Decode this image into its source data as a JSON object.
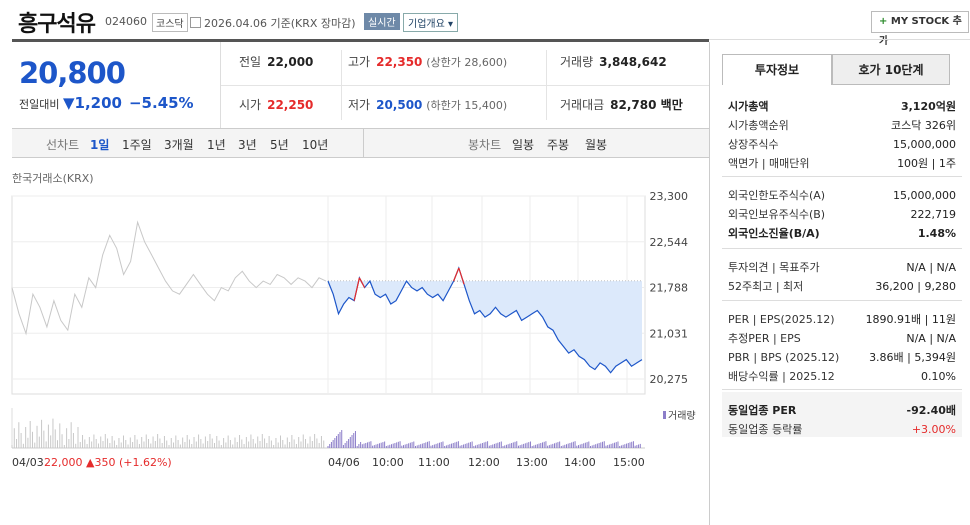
{
  "header": {
    "name": "흥구석유",
    "code": "024060",
    "market": "코스닥",
    "date": "2026.04.06 기준(KRX 장마감)",
    "realtime": "실시간",
    "company_info": "기업개요",
    "mystock_plus": "+",
    "mystock": "MY STOCK 추가"
  },
  "price": {
    "current": "20,800",
    "change_label": "전일대비",
    "change_arrow": "▼",
    "change": "1,200",
    "change_pct": "−5.45%"
  },
  "summary": {
    "prev_label": "전일",
    "prev": "22,000",
    "high_label": "고가",
    "high": "22,350",
    "upper": "(상한가 28,600)",
    "volume_label": "거래량",
    "volume": "3,848,642",
    "open_label": "시가",
    "open": "22,250",
    "low_label": "저가",
    "low": "20,500",
    "lower": "(하한가 15,400)",
    "amount_label": "거래대금",
    "amount": "82,780 백만"
  },
  "tabs": {
    "line_label": "선차트",
    "line": [
      "1일",
      "1주일",
      "3개월",
      "1년",
      "3년",
      "5년",
      "10년"
    ],
    "candle_label": "봉차트",
    "candle": [
      "일봉",
      "주봉",
      "월봉"
    ]
  },
  "chart_data": {
    "type": "line",
    "source": "한국거래소(KRX)",
    "yticks": [
      "23,300",
      "22,544",
      "21,788",
      "21,031",
      "20,275"
    ],
    "ylim": [
      20275,
      23300
    ],
    "prev_close": 22000,
    "xticks": [
      "04/06",
      "10:00",
      "11:00",
      "12:00",
      "13:00",
      "14:00",
      "15:00"
    ],
    "left_label_date": "04/03",
    "left_label_price": "22,000",
    "left_label_chg": "▲350 (+1.62%)",
    "volume_label": "거래량",
    "prev_day_series": [
      21900,
      21500,
      21200,
      21800,
      21600,
      21300,
      21700,
      21400,
      21250,
      21800,
      21600,
      22050,
      21900,
      22400,
      22700,
      22500,
      22100,
      22300,
      22900,
      22600,
      22400,
      22200,
      22000,
      21850,
      21800,
      21950,
      22100,
      21950,
      21800,
      21700,
      21900,
      21850,
      22050,
      22150,
      22000,
      21900,
      22000,
      21950,
      22100,
      22050,
      21950,
      22050,
      22000,
      21900,
      22050,
      22000
    ],
    "today_series": [
      22000,
      21800,
      21500,
      21650,
      21750,
      21700,
      22050,
      21900,
      22000,
      21800,
      21750,
      21800,
      21650,
      21700,
      21850,
      22000,
      21900,
      21850,
      21900,
      21800,
      21750,
      21800,
      21700,
      21850,
      22000,
      22200,
      21950,
      21700,
      21500,
      21550,
      21450,
      21500,
      21600,
      21500,
      21450,
      21500,
      21550,
      21400,
      21450,
      21500,
      21550,
      21450,
      21300,
      21250,
      21100,
      21000,
      20900,
      20950,
      20850,
      20800,
      20700,
      20650,
      20750,
      20700,
      20600,
      20700,
      20750,
      20800,
      20700,
      20750,
      20800
    ]
  },
  "right": {
    "tab_on": "투자정보",
    "tab_off": "호가 10단계",
    "rows1": [
      {
        "l": "시가총액",
        "r": "3,120억원",
        "b": true
      },
      {
        "l": "시가총액순위",
        "r": "코스닥 326위"
      },
      {
        "l": "상장주식수",
        "r": "15,000,000"
      },
      {
        "l": "액면가 | 매매단위",
        "r": "100원 | 1주"
      }
    ],
    "rows2": [
      {
        "l": "외국인한도주식수(A)",
        "r": "15,000,000"
      },
      {
        "l": "외국인보유주식수(B)",
        "r": "222,719"
      },
      {
        "l": "외국인소진율(B/A)",
        "r": "1.48%",
        "b": true
      }
    ],
    "rows3": [
      {
        "l": "투자의견 | 목표주가",
        "r": "N/A | N/A"
      },
      {
        "l": "52주최고 | 최저",
        "r": "36,200 | 9,280"
      }
    ],
    "rows4": [
      {
        "l": "PER | EPS(2025.12)",
        "r": "1890.91배 | 11원"
      },
      {
        "l": "추정PER | EPS",
        "r": "N/A | N/A"
      },
      {
        "l": "PBR | BPS (2025.12)",
        "r": "3.86배 | 5,394원"
      },
      {
        "l": "배당수익률 | 2025.12",
        "r": "0.10%"
      }
    ],
    "rows5": [
      {
        "l": "동일업종 PER",
        "r": "-92.40배",
        "b": true
      },
      {
        "l": "동일업종 등락률",
        "r": "+3.00%",
        "red": true
      }
    ]
  }
}
